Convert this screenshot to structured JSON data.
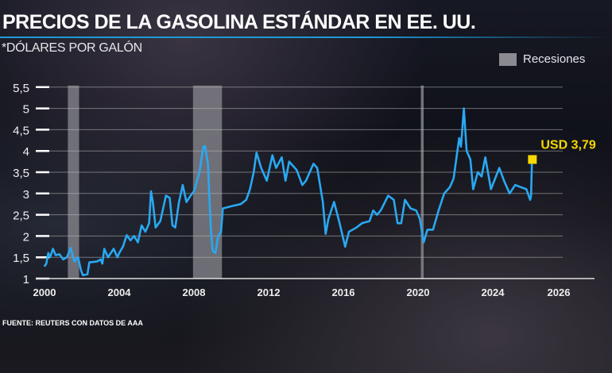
{
  "title": "PRECIOS DE LA GASOLINA ESTÁNDAR EN EE. UU.",
  "subtitle": "*DÓLARES POR GALÓN",
  "legend_label": "Recesiones",
  "source": "FUENTE: REUTERS CON DATOS DE AAA",
  "colors": {
    "line": "#29a8f2",
    "recession": "#8a8a90",
    "highlight": "#f5d800",
    "accent_rule": "#1e9ad6"
  },
  "chart_data": {
    "type": "line",
    "title": "PRECIOS DE LA GASOLINA ESTÁNDAR EN EE. UU.",
    "ylabel": "*DÓLARES POR GALÓN",
    "xlim": [
      2000,
      2026
    ],
    "ylim": [
      1,
      5.5
    ],
    "grid": true,
    "legend": "top-right",
    "x_ticks": [
      "2000",
      "2004",
      "2008",
      "2012",
      "2016",
      "2020",
      "2024",
      "2026"
    ],
    "y_ticks": [
      "1",
      "1,5",
      "2",
      "2,5",
      "3",
      "3,5",
      "4",
      "4,5",
      "5",
      "5,5"
    ],
    "recessions": [
      [
        2001.25,
        2001.85
      ],
      [
        2007.95,
        2009.5
      ],
      [
        2020.15,
        2020.3
      ]
    ],
    "annotation": {
      "label": "USD 3,79",
      "x": 2026.1,
      "y": 3.79
    },
    "series": [
      {
        "x": [
          2000.0,
          2000.1,
          2000.2,
          2000.3,
          2000.45,
          2000.6,
          2000.8,
          2001.0,
          2001.2,
          2001.4,
          2001.6,
          2001.8,
          2001.95,
          2002.05,
          2002.3,
          2002.4,
          2002.8,
          2003.0,
          2003.1,
          2003.2,
          2003.4,
          2003.7,
          2003.9,
          2004.0,
          2004.2,
          2004.4,
          2004.6,
          2004.8,
          2005.0,
          2005.2,
          2005.4,
          2005.6,
          2005.7,
          2005.8,
          2005.95,
          2006.2,
          2006.5,
          2006.7,
          2006.85,
          2007.0,
          2007.2,
          2007.4,
          2007.6,
          2007.9,
          2008.0,
          2008.3,
          2008.5,
          2008.6,
          2008.75,
          2008.9,
          2009.0,
          2009.15,
          2009.3,
          2009.45,
          2009.55,
          2010.0,
          2010.5,
          2010.8,
          2011.0,
          2011.2,
          2011.35,
          2011.6,
          2011.9,
          2012.2,
          2012.4,
          2012.7,
          2012.9,
          2013.1,
          2013.5,
          2013.8,
          2014.0,
          2014.4,
          2014.6,
          2014.9,
          2015.05,
          2015.2,
          2015.5,
          2015.8,
          2016.1,
          2016.3,
          2016.7,
          2017.0,
          2017.4,
          2017.6,
          2017.8,
          2018.0,
          2018.4,
          2018.7,
          2018.9,
          2019.1,
          2019.3,
          2019.6,
          2019.9,
          2020.1,
          2020.3,
          2020.5,
          2020.8,
          2021.1,
          2021.4,
          2021.7,
          2021.9,
          2022.2,
          2022.3,
          2022.45,
          2022.6,
          2022.8,
          2022.95,
          2023.2,
          2023.4,
          2023.6,
          2023.9,
          2024.35,
          2024.6,
          2024.9,
          2025.2,
          2025.5,
          2025.8,
          2026.0,
          2026.05,
          2026.1
        ],
        "y": [
          1.29,
          1.35,
          1.6,
          1.5,
          1.7,
          1.55,
          1.57,
          1.45,
          1.5,
          1.72,
          1.4,
          1.5,
          1.2,
          1.08,
          1.1,
          1.38,
          1.4,
          1.45,
          1.35,
          1.7,
          1.5,
          1.7,
          1.5,
          1.6,
          1.75,
          2.02,
          1.9,
          2.0,
          1.85,
          2.25,
          2.1,
          2.3,
          3.05,
          2.8,
          2.2,
          2.35,
          2.95,
          2.9,
          2.25,
          2.2,
          2.8,
          3.2,
          2.8,
          3.0,
          3.05,
          3.5,
          4.1,
          4.11,
          3.7,
          2.2,
          1.65,
          1.6,
          2.0,
          2.1,
          2.65,
          2.7,
          2.75,
          2.85,
          3.1,
          3.5,
          3.96,
          3.6,
          3.3,
          3.9,
          3.6,
          3.85,
          3.3,
          3.75,
          3.55,
          3.2,
          3.3,
          3.7,
          3.6,
          2.8,
          2.05,
          2.4,
          2.8,
          2.3,
          1.75,
          2.1,
          2.2,
          2.3,
          2.35,
          2.6,
          2.5,
          2.6,
          2.95,
          2.85,
          2.3,
          2.3,
          2.85,
          2.65,
          2.6,
          2.4,
          1.85,
          2.15,
          2.15,
          2.6,
          3.0,
          3.15,
          3.35,
          4.3,
          4.1,
          5.0,
          4.0,
          3.8,
          3.1,
          3.5,
          3.4,
          3.85,
          3.1,
          3.6,
          3.3,
          3.0,
          3.2,
          3.15,
          3.1,
          2.85,
          2.95,
          3.79
        ]
      }
    ]
  }
}
